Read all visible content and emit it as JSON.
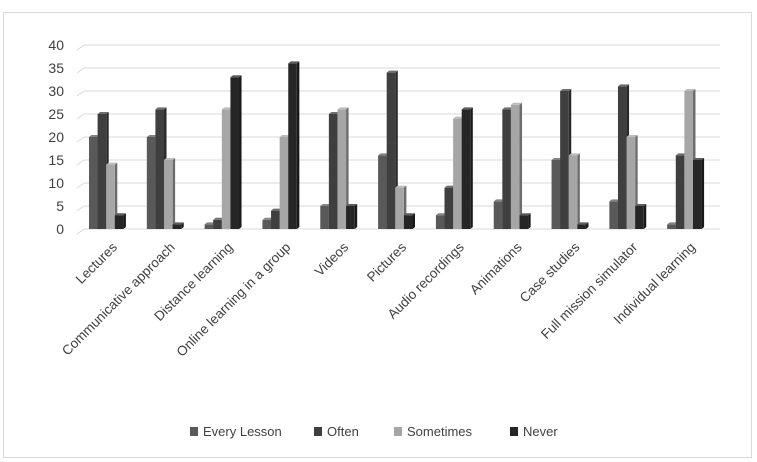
{
  "chart_data": {
    "type": "bar",
    "style": "3d-clustered-column",
    "categories": [
      "Lectures",
      "Communicative approach",
      "Distance learning",
      "Online learning in a group",
      "Videos",
      "Pictures",
      "Audio recordings",
      "Animations",
      "Case studies",
      "Full mission simulator",
      "Individual  learning"
    ],
    "series": [
      {
        "name": "Every Lesson",
        "color": "#595959",
        "values": [
          20,
          20,
          1,
          2,
          5,
          16,
          3,
          6,
          15,
          6,
          1
        ]
      },
      {
        "name": "Often",
        "color": "#3f3f3f",
        "values": [
          25,
          26,
          2,
          4,
          25,
          34,
          9,
          26,
          30,
          31,
          16
        ]
      },
      {
        "name": "Sometimes",
        "color": "#a6a6a6",
        "values": [
          14,
          15,
          26,
          20,
          26,
          9,
          24,
          27,
          16,
          20,
          30
        ]
      },
      {
        "name": "Never",
        "color": "#262626",
        "values": [
          3,
          1,
          33,
          36,
          5,
          3,
          26,
          3,
          1,
          5,
          15
        ]
      }
    ],
    "yticks": [
      "0",
      "5",
      "10",
      "15",
      "20",
      "25",
      "30",
      "35",
      "40"
    ],
    "ylim": [
      0,
      40
    ],
    "grid": true,
    "legend_position": "bottom"
  }
}
